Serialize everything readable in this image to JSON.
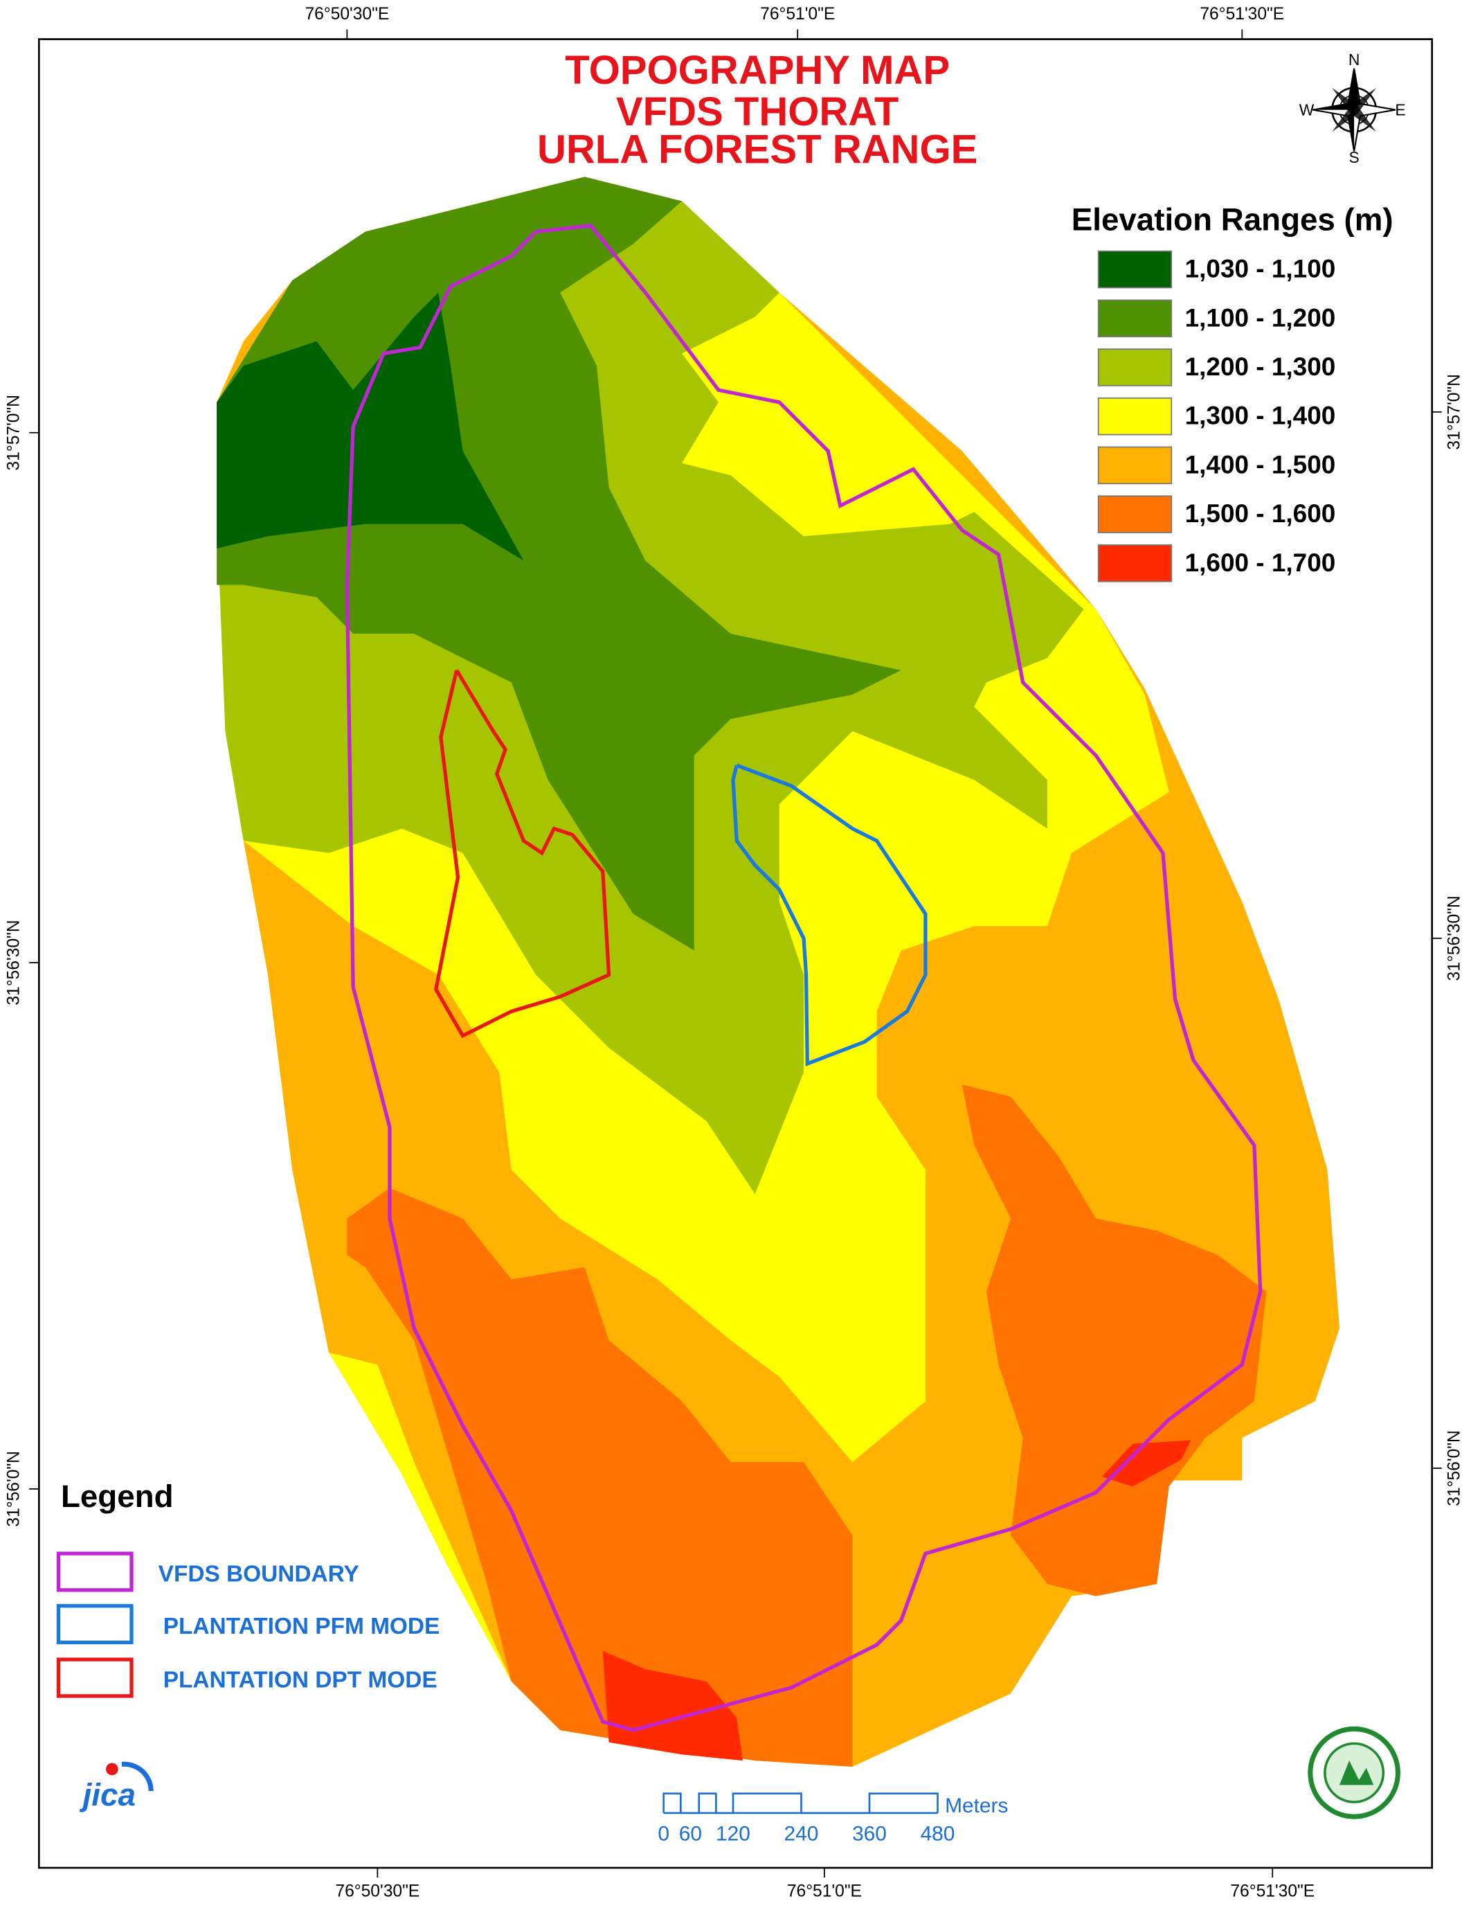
{
  "map": {
    "title": [
      "TOPOGRAPHY MAP",
      "VFDS THORAT",
      "URLA FOREST RANGE"
    ],
    "top_labels": [
      "76°50'30\"E",
      "76°51'0\"E",
      "76°51'30\"E"
    ],
    "bottom_labels": [
      "76°50'30\"E",
      "76°51'0\"E",
      "76°51'30\"E"
    ],
    "left_labels": [
      "31°57'0\"N",
      "31°56'30\"N",
      "31°56'0\"N"
    ],
    "right_labels": [
      "31°57'0\"N",
      "31°56'30\"N",
      "31°56'0\"N"
    ],
    "compass": {
      "n": "N",
      "e": "E",
      "s": "S",
      "w": "W"
    },
    "elevation_legend": {
      "title": "Elevation Ranges (m)",
      "items": [
        {
          "label": "1,030 - 1,100",
          "color": "#006100"
        },
        {
          "label": "1,100 - 1,200",
          "color": "#4f9100"
        },
        {
          "label": "1,200 - 1,300",
          "color": "#a6c400"
        },
        {
          "label": "1,300 - 1,400",
          "color": "#ffff00"
        },
        {
          "label": "1,400 - 1,500",
          "color": "#ffb300"
        },
        {
          "label": "1,500 - 1,600",
          "color": "#ff7300"
        },
        {
          "label": "1,600 - 1,700",
          "color": "#ff2a00"
        }
      ]
    },
    "legend": {
      "title": "Legend",
      "items": [
        {
          "label": "VFDS BOUNDARY",
          "color": "#c026d3"
        },
        {
          "label": "PLANTATION PFM MODE",
          "color": "#1a7ae0"
        },
        {
          "label": "PLANTATION DPT MODE",
          "color": "#e81818"
        }
      ]
    },
    "scale_bar": {
      "unit": "Meters",
      "labels": [
        "0",
        "60",
        "120",
        "240",
        "360",
        "480"
      ]
    },
    "logo": "jica"
  }
}
